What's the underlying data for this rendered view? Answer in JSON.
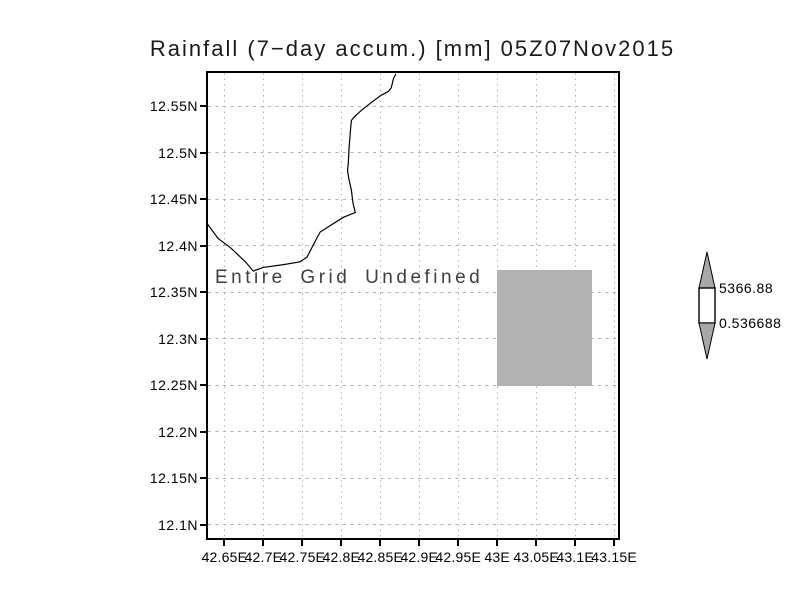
{
  "title": "Rainfall (7−day accum.) [mm] 05Z07Nov2015",
  "message": "Entire Grid Undefined",
  "colorbar": {
    "max_label": "5366.88",
    "min_label": "0.536688"
  },
  "colors": {
    "background": "#ffffff",
    "frame": "#000000",
    "grid": "#b0b0b0",
    "coastline": "#000000",
    "undefined_box": "#b2b2b2",
    "colorbar_arrow": "#a8a8a8",
    "message_text": "#3f3f3f",
    "text": "#1a1a1a"
  },
  "chart_data": {
    "type": "heatmap",
    "title": "Rainfall (7-day accum.) [mm] 05Z07Nov2015",
    "xlabel": "",
    "ylabel": "",
    "xlim": [
      42.629,
      43.155
    ],
    "ylim": [
      12.086,
      12.586
    ],
    "grid": true,
    "legend_position": "right-colorbar",
    "colorbar_range": {
      "min": 0.536688,
      "max": 5366.88
    },
    "data_status": "Entire Grid Undefined",
    "series": [],
    "x_ticks": [
      {
        "v": 42.65,
        "label": "42.65E"
      },
      {
        "v": 42.7,
        "label": "42.7E"
      },
      {
        "v": 42.75,
        "label": "42.75E"
      },
      {
        "v": 42.8,
        "label": "42.8E"
      },
      {
        "v": 42.85,
        "label": "42.85E"
      },
      {
        "v": 42.9,
        "label": "42.9E"
      },
      {
        "v": 42.95,
        "label": "42.95E"
      },
      {
        "v": 43.0,
        "label": "43E"
      },
      {
        "v": 43.05,
        "label": "43.05E"
      },
      {
        "v": 43.1,
        "label": "43.1E"
      },
      {
        "v": 43.15,
        "label": "43.15E"
      }
    ],
    "y_ticks": [
      {
        "v": 12.55,
        "label": "12.55N"
      },
      {
        "v": 12.5,
        "label": "12.5N"
      },
      {
        "v": 12.45,
        "label": "12.45N"
      },
      {
        "v": 12.4,
        "label": "12.4N"
      },
      {
        "v": 12.35,
        "label": "12.35N"
      },
      {
        "v": 12.3,
        "label": "12.3N"
      },
      {
        "v": 12.25,
        "label": "12.25N"
      },
      {
        "v": 12.2,
        "label": "12.2N"
      },
      {
        "v": 12.15,
        "label": "12.15N"
      },
      {
        "v": 12.1,
        "label": "12.1N"
      }
    ],
    "undefined_region_box": {
      "lon_min": 43.0,
      "lon_max": 43.122,
      "lat_min": 12.249,
      "lat_max": 12.374
    },
    "coastline_lonlat": [
      [
        42.87,
        12.585
      ],
      [
        42.867,
        12.58
      ],
      [
        42.864,
        12.57
      ],
      [
        42.86,
        12.566
      ],
      [
        42.851,
        12.562
      ],
      [
        42.838,
        12.554
      ],
      [
        42.826,
        12.546
      ],
      [
        42.818,
        12.54
      ],
      [
        42.813,
        12.535
      ],
      [
        42.812,
        12.526
      ],
      [
        42.81,
        12.506
      ],
      [
        42.809,
        12.489
      ],
      [
        42.808,
        12.481
      ],
      [
        42.81,
        12.471
      ],
      [
        42.813,
        12.46
      ],
      [
        42.815,
        12.446
      ],
      [
        42.818,
        12.436
      ],
      [
        42.803,
        12.431
      ],
      [
        42.786,
        12.422
      ],
      [
        42.773,
        12.415
      ],
      [
        42.769,
        12.409
      ],
      [
        42.756,
        12.388
      ],
      [
        42.747,
        12.383
      ],
      [
        42.726,
        12.38
      ],
      [
        42.7,
        12.377
      ],
      [
        42.687,
        12.373
      ],
      [
        42.677,
        12.383
      ],
      [
        42.658,
        12.398
      ],
      [
        42.642,
        12.408
      ],
      [
        42.628,
        12.424
      ]
    ]
  }
}
